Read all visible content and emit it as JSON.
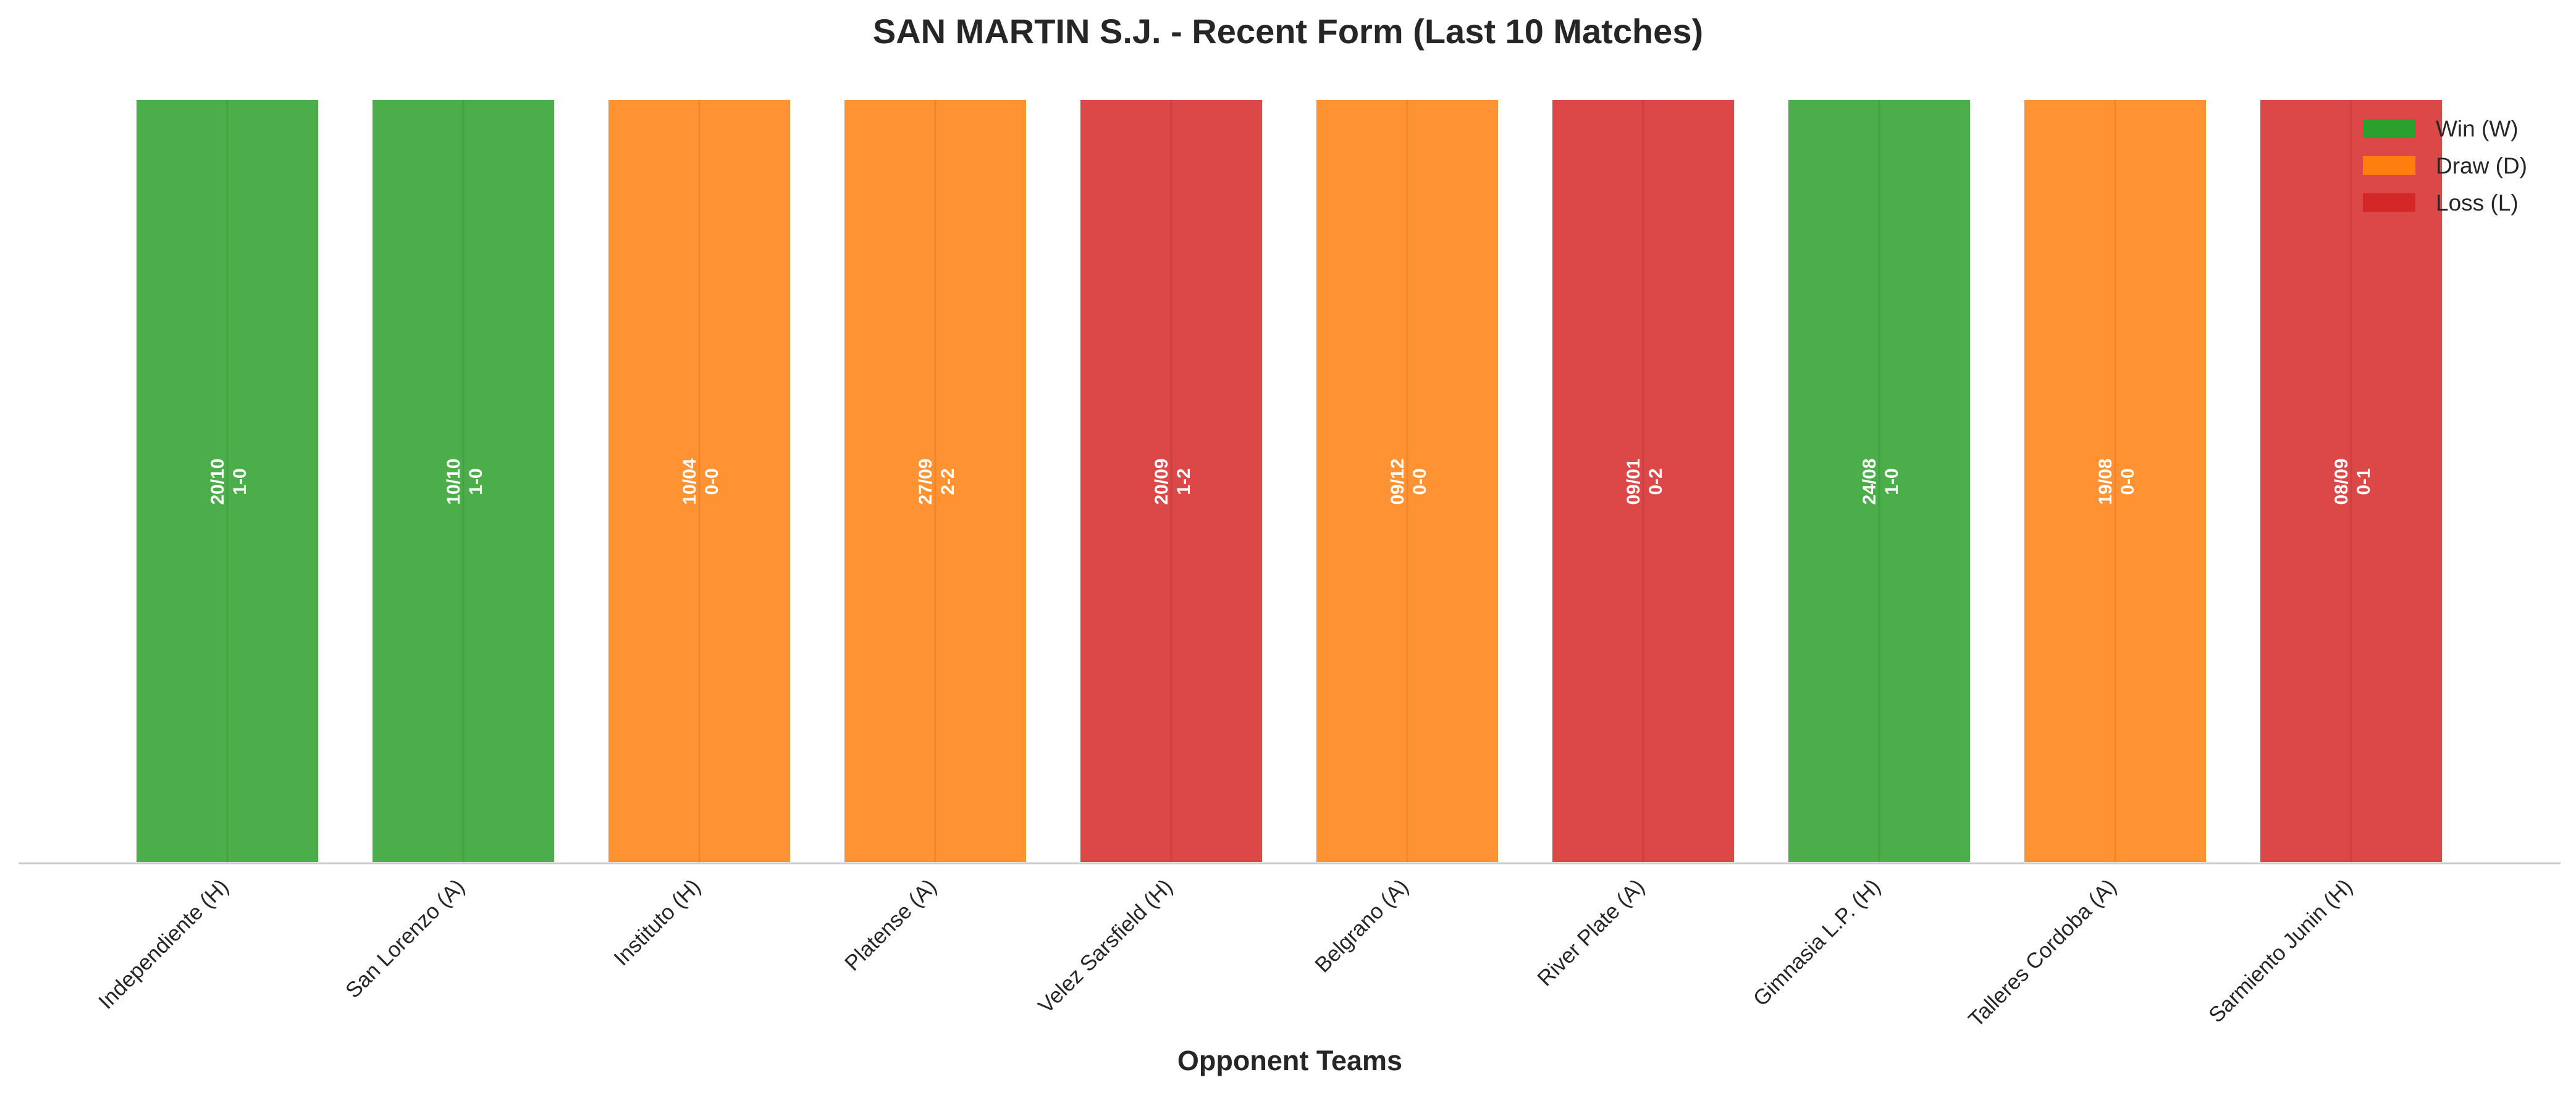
{
  "chart_data": {
    "type": "bar",
    "title": "SAN MARTIN S.J. - Recent Form (Last 10 Matches)",
    "xlabel": "Opponent Teams",
    "ylabel": "",
    "ylim": [
      0,
      1
    ],
    "grid": false,
    "legend_position": "top-right",
    "legend": [
      {
        "key": "W",
        "label": "Win (W)",
        "color": "#2ca02c"
      },
      {
        "key": "D",
        "label": "Draw (D)",
        "color": "#ff7f0e"
      },
      {
        "key": "L",
        "label": "Loss (L)",
        "color": "#d62728"
      }
    ],
    "categories": [
      "Independiente (H)",
      "San Lorenzo (A)",
      "Instituto (H)",
      "Platense (A)",
      "Velez Sarsfield (H)",
      "Belgrano (A)",
      "River Plate (A)",
      "Gimnasia L.P. (H)",
      "Talleres Cordoba (A)",
      "Sarmiento Junin (H)"
    ],
    "values": [
      1,
      1,
      1,
      1,
      1,
      1,
      1,
      1,
      1,
      1
    ],
    "results": [
      "W",
      "W",
      "D",
      "D",
      "L",
      "D",
      "L",
      "W",
      "D",
      "L"
    ],
    "dates": [
      "20/10",
      "10/10",
      "10/04",
      "27/09",
      "20/09",
      "09/12",
      "09/01",
      "24/08",
      "19/08",
      "08/09"
    ],
    "scores": [
      "1-0",
      "1-0",
      "0-0",
      "2-2",
      "1-2",
      "0-0",
      "0-2",
      "1-0",
      "0-0",
      "0-1"
    ]
  }
}
